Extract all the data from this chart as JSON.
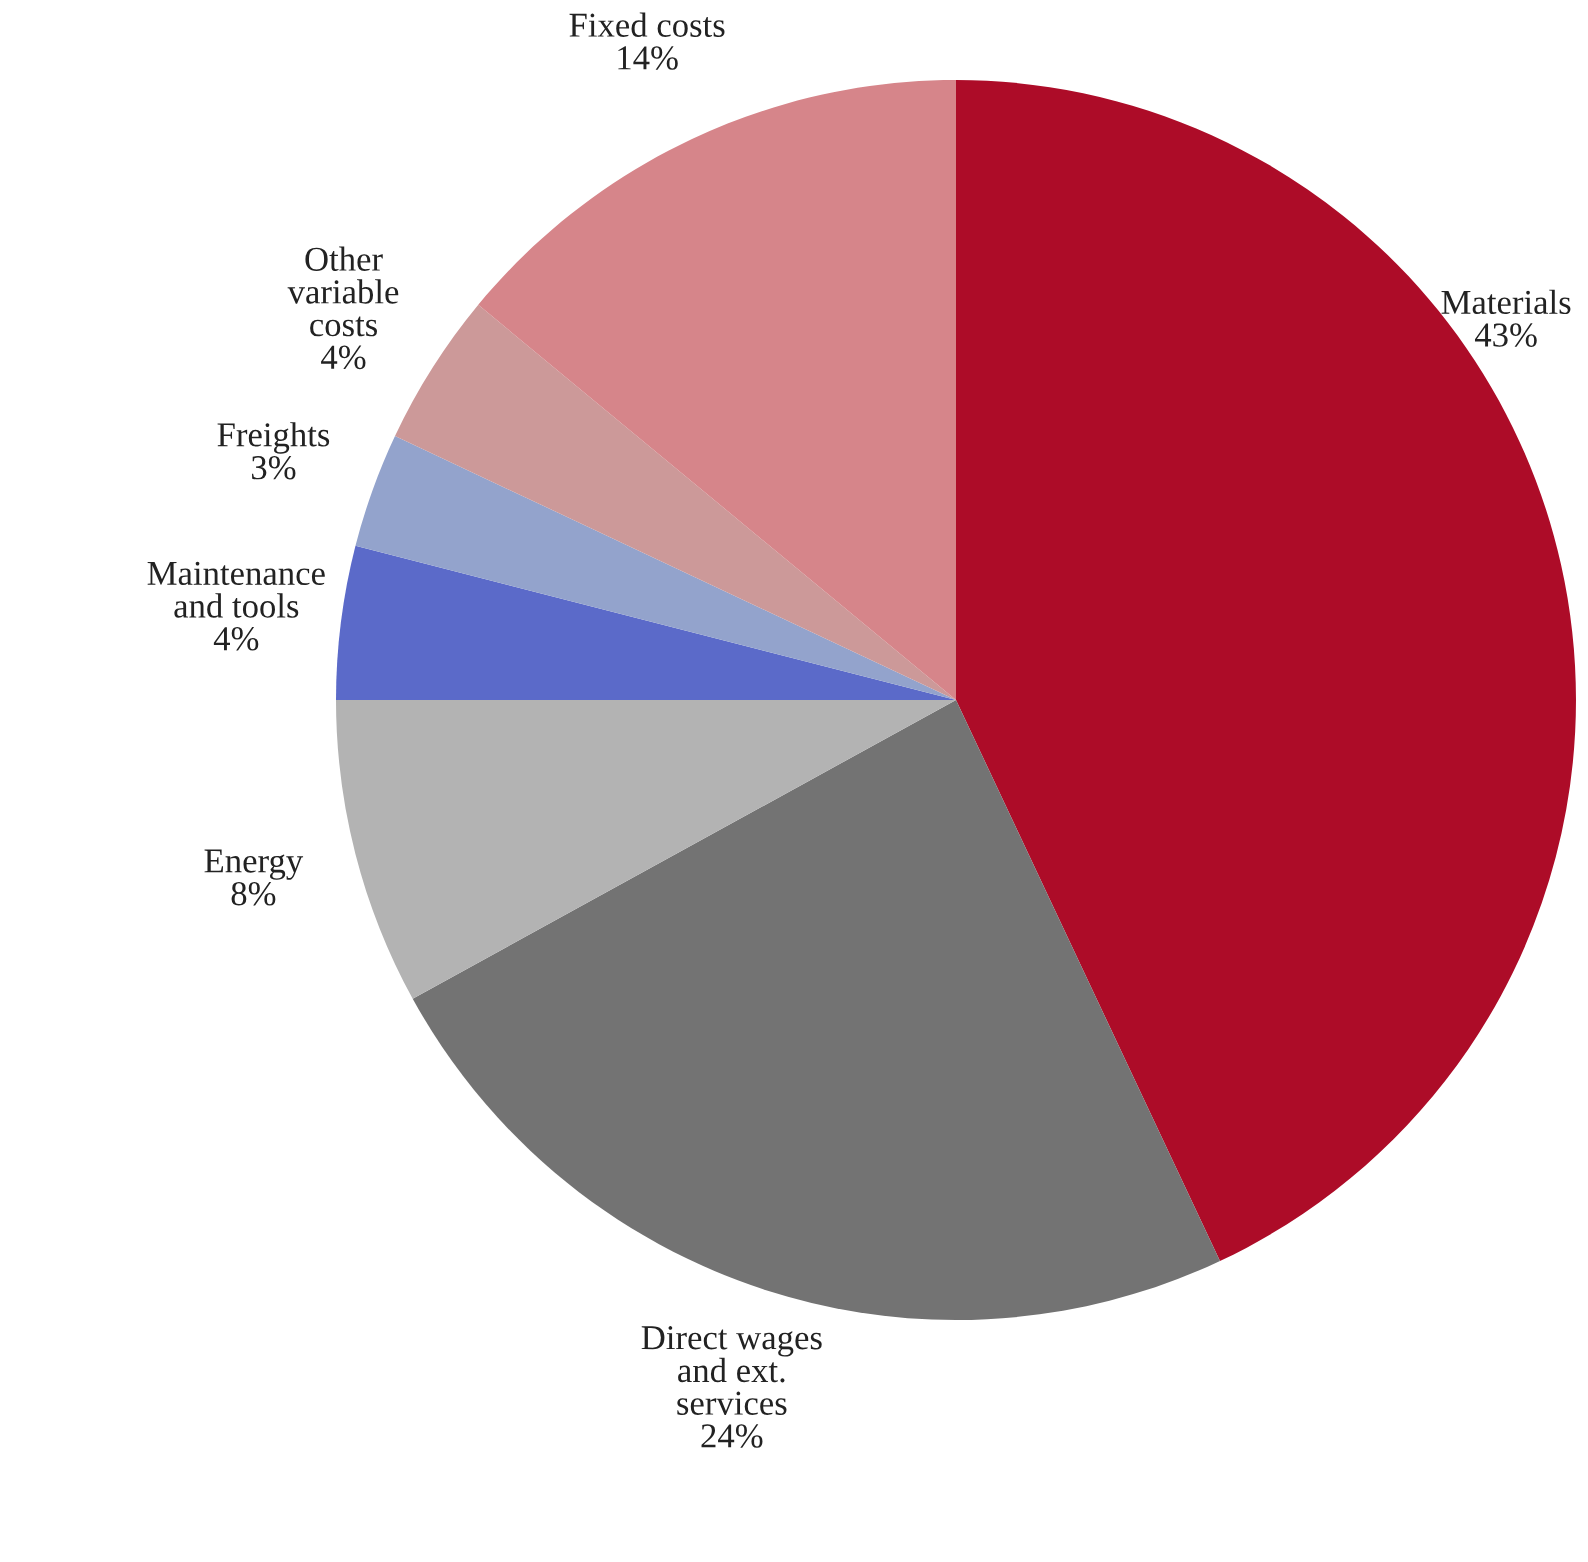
{
  "chart_data": {
    "type": "pie",
    "categories": [
      "Materials",
      "Direct wages\nand ext.\nservices",
      "Energy",
      "Maintenance\nand tools",
      "Freights",
      "Other\nvariable\ncosts",
      "Fixed costs"
    ],
    "values": [
      43,
      24,
      8,
      4,
      3,
      4,
      14
    ],
    "value_labels": [
      "43%",
      "24%",
      "8%",
      "4%",
      "3%",
      "4%",
      "14%"
    ],
    "colors": [
      "#ad0c28",
      "#737373",
      "#b3b3b3",
      "#5b6ac9",
      "#93a3cc",
      "#cc9999",
      "#d6858a"
    ],
    "legend": false
  }
}
